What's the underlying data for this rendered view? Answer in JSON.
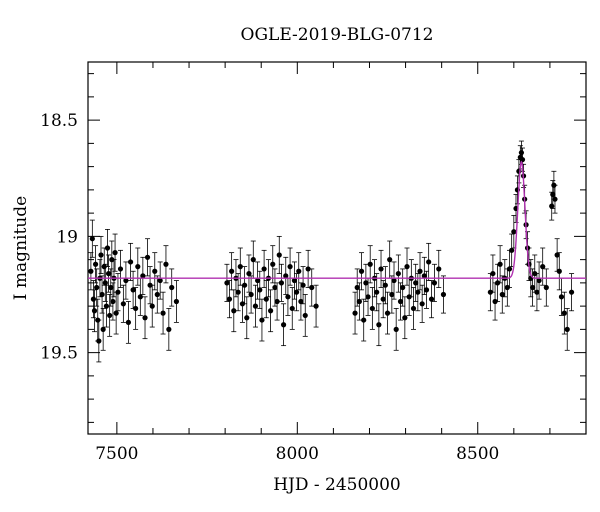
{
  "chart_data": {
    "type": "scatter",
    "title": "OGLE-2019-BLG-0712",
    "xlabel": "HJD - 2450000",
    "ylabel": "I magnitude",
    "xlim": [
      7420,
      8800
    ],
    "ylim": [
      19.85,
      18.25
    ],
    "y_inverted": true,
    "x_ticks": [
      7500,
      8000,
      8500
    ],
    "y_ticks": [
      18.5,
      19,
      19.5
    ],
    "x_tick_labels": [
      "7500",
      "8000",
      "8500"
    ],
    "y_tick_labels": [
      "18.5",
      "19",
      "19.5"
    ],
    "grid": false,
    "colors": {
      "points": "#000000",
      "model": "#b030b0"
    },
    "series": [
      {
        "type": "points_with_errorbars",
        "points": [
          {
            "x": 7428,
            "y": 19.15,
            "err": 0.08
          },
          {
            "x": 7432,
            "y": 19.01,
            "err": 0.08
          },
          {
            "x": 7435,
            "y": 19.27,
            "err": 0.08
          },
          {
            "x": 7438,
            "y": 19.32,
            "err": 0.09
          },
          {
            "x": 7441,
            "y": 19.12,
            "err": 0.08
          },
          {
            "x": 7444,
            "y": 19.22,
            "err": 0.08
          },
          {
            "x": 7447,
            "y": 19.36,
            "err": 0.09
          },
          {
            "x": 7450,
            "y": 19.45,
            "err": 0.09
          },
          {
            "x": 7453,
            "y": 19.18,
            "err": 0.08
          },
          {
            "x": 7456,
            "y": 19.08,
            "err": 0.08
          },
          {
            "x": 7459,
            "y": 19.25,
            "err": 0.08
          },
          {
            "x": 7462,
            "y": 19.4,
            "err": 0.09
          },
          {
            "x": 7465,
            "y": 19.13,
            "err": 0.08
          },
          {
            "x": 7468,
            "y": 19.2,
            "err": 0.08
          },
          {
            "x": 7471,
            "y": 19.3,
            "err": 0.09
          },
          {
            "x": 7474,
            "y": 19.05,
            "err": 0.08
          },
          {
            "x": 7477,
            "y": 19.16,
            "err": 0.08
          },
          {
            "x": 7480,
            "y": 19.34,
            "err": 0.09
          },
          {
            "x": 7483,
            "y": 19.22,
            "err": 0.08
          },
          {
            "x": 7486,
            "y": 19.1,
            "err": 0.08
          },
          {
            "x": 7489,
            "y": 19.28,
            "err": 0.08
          },
          {
            "x": 7492,
            "y": 19.18,
            "err": 0.08
          },
          {
            "x": 7495,
            "y": 19.07,
            "err": 0.08
          },
          {
            "x": 7498,
            "y": 19.33,
            "err": 0.09
          },
          {
            "x": 7503,
            "y": 19.24,
            "err": 0.08
          },
          {
            "x": 7510,
            "y": 19.14,
            "err": 0.08
          },
          {
            "x": 7518,
            "y": 19.29,
            "err": 0.08
          },
          {
            "x": 7525,
            "y": 19.19,
            "err": 0.08
          },
          {
            "x": 7532,
            "y": 19.37,
            "err": 0.09
          },
          {
            "x": 7538,
            "y": 19.11,
            "err": 0.08
          },
          {
            "x": 7545,
            "y": 19.23,
            "err": 0.08
          },
          {
            "x": 7552,
            "y": 19.31,
            "err": 0.09
          },
          {
            "x": 7558,
            "y": 19.13,
            "err": 0.08
          },
          {
            "x": 7565,
            "y": 19.26,
            "err": 0.08
          },
          {
            "x": 7572,
            "y": 19.17,
            "err": 0.08
          },
          {
            "x": 7578,
            "y": 19.35,
            "err": 0.09
          },
          {
            "x": 7585,
            "y": 19.09,
            "err": 0.08
          },
          {
            "x": 7592,
            "y": 19.21,
            "err": 0.08
          },
          {
            "x": 7598,
            "y": 19.3,
            "err": 0.09
          },
          {
            "x": 7605,
            "y": 19.15,
            "err": 0.08
          },
          {
            "x": 7612,
            "y": 19.25,
            "err": 0.08
          },
          {
            "x": 7620,
            "y": 19.19,
            "err": 0.08
          },
          {
            "x": 7628,
            "y": 19.33,
            "err": 0.09
          },
          {
            "x": 7636,
            "y": 19.12,
            "err": 0.08
          },
          {
            "x": 7644,
            "y": 19.4,
            "err": 0.09
          },
          {
            "x": 7652,
            "y": 19.22,
            "err": 0.08
          },
          {
            "x": 7665,
            "y": 19.28,
            "err": 0.09
          },
          {
            "x": 7805,
            "y": 19.2,
            "err": 0.08
          },
          {
            "x": 7812,
            "y": 19.27,
            "err": 0.08
          },
          {
            "x": 7818,
            "y": 19.15,
            "err": 0.08
          },
          {
            "x": 7824,
            "y": 19.32,
            "err": 0.09
          },
          {
            "x": 7830,
            "y": 19.18,
            "err": 0.08
          },
          {
            "x": 7836,
            "y": 19.24,
            "err": 0.08
          },
          {
            "x": 7842,
            "y": 19.13,
            "err": 0.08
          },
          {
            "x": 7848,
            "y": 19.29,
            "err": 0.08
          },
          {
            "x": 7854,
            "y": 19.21,
            "err": 0.08
          },
          {
            "x": 7860,
            "y": 19.35,
            "err": 0.09
          },
          {
            "x": 7866,
            "y": 19.16,
            "err": 0.08
          },
          {
            "x": 7872,
            "y": 19.25,
            "err": 0.08
          },
          {
            "x": 7878,
            "y": 19.1,
            "err": 0.08
          },
          {
            "x": 7884,
            "y": 19.3,
            "err": 0.09
          },
          {
            "x": 7890,
            "y": 19.19,
            "err": 0.08
          },
          {
            "x": 7896,
            "y": 19.23,
            "err": 0.08
          },
          {
            "x": 7902,
            "y": 19.36,
            "err": 0.09
          },
          {
            "x": 7908,
            "y": 19.14,
            "err": 0.08
          },
          {
            "x": 7914,
            "y": 19.27,
            "err": 0.08
          },
          {
            "x": 7920,
            "y": 19.18,
            "err": 0.08
          },
          {
            "x": 7926,
            "y": 19.32,
            "err": 0.09
          },
          {
            "x": 7932,
            "y": 19.12,
            "err": 0.08
          },
          {
            "x": 7938,
            "y": 19.22,
            "err": 0.08
          },
          {
            "x": 7944,
            "y": 19.28,
            "err": 0.08
          },
          {
            "x": 7950,
            "y": 19.08,
            "err": 0.08
          },
          {
            "x": 7956,
            "y": 19.2,
            "err": 0.08
          },
          {
            "x": 7962,
            "y": 19.38,
            "err": 0.09
          },
          {
            "x": 7968,
            "y": 19.17,
            "err": 0.08
          },
          {
            "x": 7974,
            "y": 19.26,
            "err": 0.08
          },
          {
            "x": 7980,
            "y": 19.13,
            "err": 0.08
          },
          {
            "x": 7986,
            "y": 19.31,
            "err": 0.09
          },
          {
            "x": 7992,
            "y": 19.19,
            "err": 0.08
          },
          {
            "x": 7998,
            "y": 19.24,
            "err": 0.08
          },
          {
            "x": 8004,
            "y": 19.15,
            "err": 0.08
          },
          {
            "x": 8010,
            "y": 19.28,
            "err": 0.08
          },
          {
            "x": 8016,
            "y": 19.21,
            "err": 0.08
          },
          {
            "x": 8022,
            "y": 19.34,
            "err": 0.09
          },
          {
            "x": 8030,
            "y": 19.14,
            "err": 0.08
          },
          {
            "x": 8040,
            "y": 19.22,
            "err": 0.08
          },
          {
            "x": 8052,
            "y": 19.3,
            "err": 0.09
          },
          {
            "x": 8160,
            "y": 19.33,
            "err": 0.09
          },
          {
            "x": 8166,
            "y": 19.22,
            "err": 0.08
          },
          {
            "x": 8172,
            "y": 19.28,
            "err": 0.08
          },
          {
            "x": 8178,
            "y": 19.15,
            "err": 0.08
          },
          {
            "x": 8184,
            "y": 19.36,
            "err": 0.09
          },
          {
            "x": 8190,
            "y": 19.2,
            "err": 0.08
          },
          {
            "x": 8196,
            "y": 19.26,
            "err": 0.08
          },
          {
            "x": 8202,
            "y": 19.12,
            "err": 0.08
          },
          {
            "x": 8208,
            "y": 19.31,
            "err": 0.09
          },
          {
            "x": 8214,
            "y": 19.18,
            "err": 0.08
          },
          {
            "x": 8220,
            "y": 19.24,
            "err": 0.08
          },
          {
            "x": 8226,
            "y": 19.38,
            "err": 0.09
          },
          {
            "x": 8232,
            "y": 19.14,
            "err": 0.08
          },
          {
            "x": 8238,
            "y": 19.27,
            "err": 0.08
          },
          {
            "x": 8244,
            "y": 19.21,
            "err": 0.08
          },
          {
            "x": 8250,
            "y": 19.33,
            "err": 0.09
          },
          {
            "x": 8256,
            "y": 19.1,
            "err": 0.08
          },
          {
            "x": 8262,
            "y": 19.25,
            "err": 0.08
          },
          {
            "x": 8268,
            "y": 19.19,
            "err": 0.08
          },
          {
            "x": 8274,
            "y": 19.4,
            "err": 0.09
          },
          {
            "x": 8280,
            "y": 19.16,
            "err": 0.08
          },
          {
            "x": 8286,
            "y": 19.28,
            "err": 0.08
          },
          {
            "x": 8292,
            "y": 19.22,
            "err": 0.08
          },
          {
            "x": 8298,
            "y": 19.35,
            "err": 0.09
          },
          {
            "x": 8304,
            "y": 19.13,
            "err": 0.08
          },
          {
            "x": 8310,
            "y": 19.26,
            "err": 0.08
          },
          {
            "x": 8316,
            "y": 19.18,
            "err": 0.08
          },
          {
            "x": 8322,
            "y": 19.31,
            "err": 0.09
          },
          {
            "x": 8328,
            "y": 19.2,
            "err": 0.08
          },
          {
            "x": 8334,
            "y": 19.24,
            "err": 0.08
          },
          {
            "x": 8340,
            "y": 19.15,
            "err": 0.08
          },
          {
            "x": 8346,
            "y": 19.29,
            "err": 0.08
          },
          {
            "x": 8352,
            "y": 19.17,
            "err": 0.08
          },
          {
            "x": 8358,
            "y": 19.23,
            "err": 0.08
          },
          {
            "x": 8364,
            "y": 19.11,
            "err": 0.08
          },
          {
            "x": 8372,
            "y": 19.27,
            "err": 0.08
          },
          {
            "x": 8380,
            "y": 19.2,
            "err": 0.08
          },
          {
            "x": 8392,
            "y": 19.14,
            "err": 0.08
          },
          {
            "x": 8405,
            "y": 19.25,
            "err": 0.08
          },
          {
            "x": 8535,
            "y": 19.24,
            "err": 0.08
          },
          {
            "x": 8542,
            "y": 19.16,
            "err": 0.08
          },
          {
            "x": 8548,
            "y": 19.28,
            "err": 0.08
          },
          {
            "x": 8555,
            "y": 19.2,
            "err": 0.08
          },
          {
            "x": 8562,
            "y": 19.12,
            "err": 0.08
          },
          {
            "x": 8568,
            "y": 19.25,
            "err": 0.08
          },
          {
            "x": 8575,
            "y": 19.18,
            "err": 0.08
          },
          {
            "x": 8582,
            "y": 19.22,
            "err": 0.08
          },
          {
            "x": 8588,
            "y": 19.14,
            "err": 0.08
          },
          {
            "x": 8594,
            "y": 19.06,
            "err": 0.07
          },
          {
            "x": 8600,
            "y": 18.98,
            "err": 0.07
          },
          {
            "x": 8606,
            "y": 18.88,
            "err": 0.06
          },
          {
            "x": 8610,
            "y": 18.8,
            "err": 0.06
          },
          {
            "x": 8614,
            "y": 18.72,
            "err": 0.05
          },
          {
            "x": 8618,
            "y": 18.66,
            "err": 0.05
          },
          {
            "x": 8621,
            "y": 18.64,
            "err": 0.05
          },
          {
            "x": 8624,
            "y": 18.67,
            "err": 0.05
          },
          {
            "x": 8627,
            "y": 18.74,
            "err": 0.05
          },
          {
            "x": 8630,
            "y": 18.84,
            "err": 0.06
          },
          {
            "x": 8634,
            "y": 18.95,
            "err": 0.06
          },
          {
            "x": 8638,
            "y": 19.05,
            "err": 0.07
          },
          {
            "x": 8642,
            "y": 19.12,
            "err": 0.07
          },
          {
            "x": 8647,
            "y": 19.18,
            "err": 0.08
          },
          {
            "x": 8652,
            "y": 19.22,
            "err": 0.08
          },
          {
            "x": 8658,
            "y": 19.16,
            "err": 0.08
          },
          {
            "x": 8664,
            "y": 19.24,
            "err": 0.08
          },
          {
            "x": 8670,
            "y": 19.19,
            "err": 0.08
          },
          {
            "x": 8680,
            "y": 19.13,
            "err": 0.08
          },
          {
            "x": 8690,
            "y": 19.22,
            "err": 0.08
          },
          {
            "x": 8705,
            "y": 18.87,
            "err": 0.06
          },
          {
            "x": 8708,
            "y": 18.82,
            "err": 0.06
          },
          {
            "x": 8711,
            "y": 18.78,
            "err": 0.06
          },
          {
            "x": 8714,
            "y": 18.84,
            "err": 0.06
          },
          {
            "x": 8720,
            "y": 19.08,
            "err": 0.07
          },
          {
            "x": 8726,
            "y": 19.15,
            "err": 0.08
          },
          {
            "x": 8732,
            "y": 19.26,
            "err": 0.08
          },
          {
            "x": 8740,
            "y": 19.33,
            "err": 0.09
          },
          {
            "x": 8748,
            "y": 19.4,
            "err": 0.09
          },
          {
            "x": 8760,
            "y": 19.24,
            "err": 0.08
          }
        ]
      },
      {
        "type": "model_line",
        "baseline": 19.18,
        "peak_x": 8621,
        "peak_y": 18.68,
        "width": 14
      }
    ]
  }
}
